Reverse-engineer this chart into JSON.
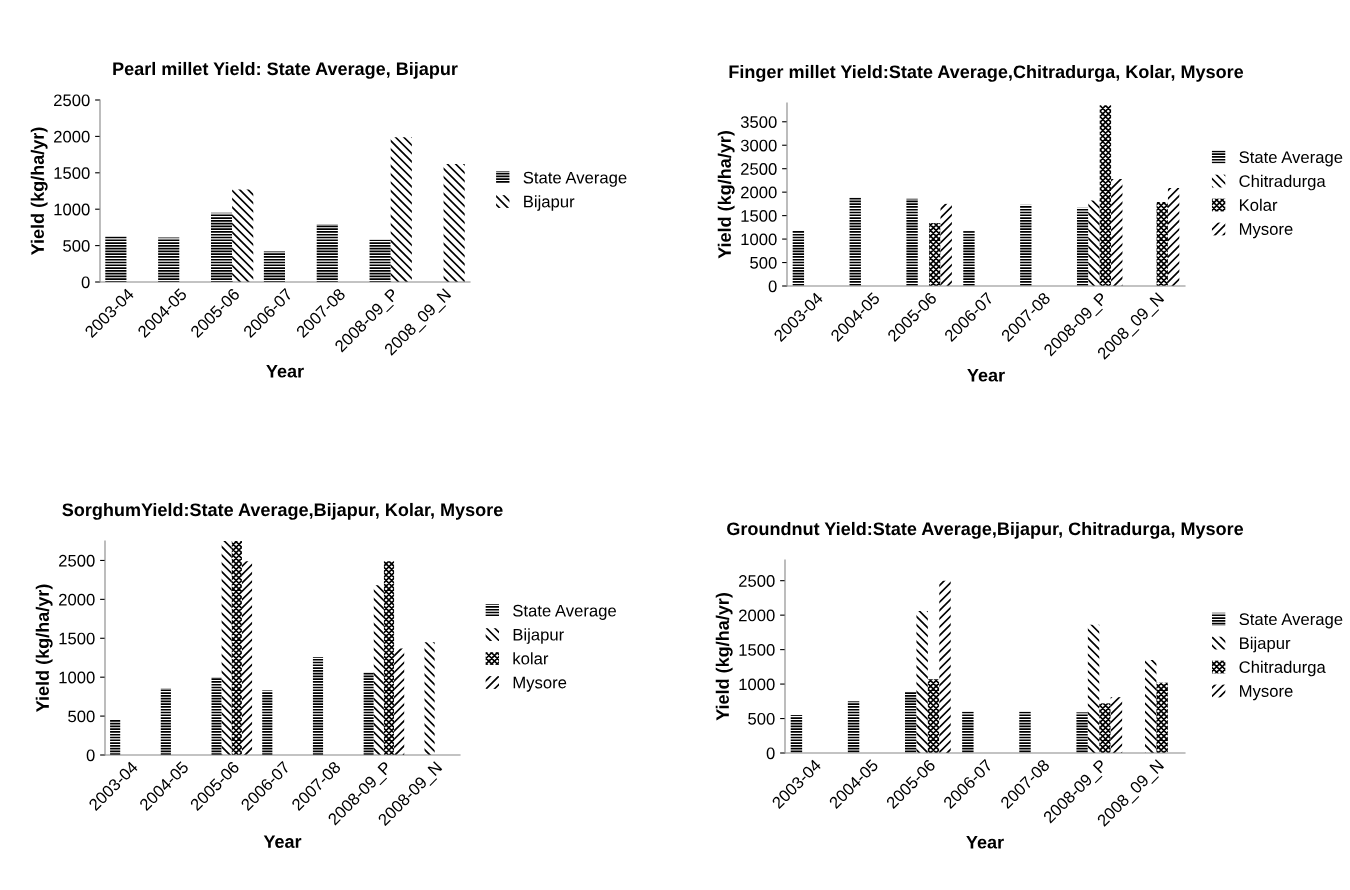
{
  "chart_data": [
    {
      "type": "bar",
      "title": "Pearl millet Yield: State Average, Bijapur",
      "xlabel": "Year",
      "ylabel": "Yield (kg/ha/yr)",
      "categories": [
        "2003-04",
        "2004-05",
        "2005-06",
        "2006-07",
        "2007-08",
        "2008-09_P",
        "2008_09_N"
      ],
      "ylim": [
        0,
        2500
      ],
      "yticks": [
        0,
        500,
        1000,
        1500,
        2000,
        2500
      ],
      "grid": false,
      "legend": "right",
      "series": [
        {
          "name": "State Average",
          "color": "#000000",
          "values": [
            630,
            610,
            950,
            420,
            790,
            580,
            null
          ]
        },
        {
          "name": "Bijapur",
          "color": "#000000",
          "values": [
            null,
            null,
            1270,
            null,
            null,
            1990,
            1620
          ]
        }
      ]
    },
    {
      "type": "bar",
      "title": "Finger millet Yield:State Average,Chitradurga, Kolar, Mysore",
      "xlabel": "Year",
      "ylabel": "Yield (kg/ha/yr)",
      "categories": [
        "2003-04",
        "2004-05",
        "2005-06",
        "2006-07",
        "2007-08",
        "2008-09_P",
        "2008_09_N"
      ],
      "ylim": [
        0,
        3900
      ],
      "yticks": [
        0,
        500,
        1000,
        1500,
        2000,
        2500,
        3000,
        3500
      ],
      "grid": false,
      "legend": "right",
      "series": [
        {
          "name": "State Average",
          "color": "#000000",
          "values": [
            1190,
            1880,
            1860,
            1170,
            1730,
            1670,
            null
          ]
        },
        {
          "name": "Chitradurga",
          "color": "#000000",
          "values": [
            null,
            null,
            null,
            null,
            null,
            1820,
            null
          ]
        },
        {
          "name": "Kolar",
          "color": "#000000",
          "values": [
            null,
            null,
            1340,
            null,
            null,
            3850,
            1790
          ]
        },
        {
          "name": "Mysore",
          "color": "#000000",
          "values": [
            null,
            null,
            1750,
            null,
            null,
            2280,
            2090
          ]
        }
      ]
    },
    {
      "type": "bar",
      "title": "SorghumYield:State Average,Bijapur, Kolar, Mysore",
      "xlabel": "Year",
      "ylabel": "Yield (kg/ha/yr)",
      "categories": [
        "2003-04",
        "2004-05",
        "2005-06",
        "2006-07",
        "2007-08",
        "2008-09_P",
        "2008-09_N"
      ],
      "ylim": [
        0,
        2750
      ],
      "yticks": [
        0,
        500,
        1000,
        1500,
        2000,
        2500
      ],
      "grid": false,
      "legend": "right",
      "series": [
        {
          "name": "State Average",
          "color": "#000000",
          "values": [
            460,
            860,
            1000,
            830,
            1260,
            1060,
            null
          ]
        },
        {
          "name": "Bijapur",
          "color": "#000000",
          "values": [
            null,
            null,
            2750,
            null,
            null,
            2180,
            1450
          ]
        },
        {
          "name": "kolar",
          "color": "#000000",
          "values": [
            null,
            null,
            2750,
            null,
            null,
            2490,
            null
          ]
        },
        {
          "name": "Mysore",
          "color": "#000000",
          "values": [
            null,
            null,
            2490,
            null,
            null,
            1370,
            null
          ]
        }
      ]
    },
    {
      "type": "bar",
      "title": "Groundnut Yield:State Average,Bijapur, Chitradurga, Mysore",
      "xlabel": "Year",
      "ylabel": "Yield (kg/ha/yr)",
      "categories": [
        "2003-04",
        "2004-05",
        "2005-06",
        "2006-07",
        "2007-08",
        "2008-09_P",
        "2008_09_N"
      ],
      "ylim": [
        0,
        2800
      ],
      "yticks": [
        0,
        500,
        1000,
        1500,
        2000,
        2500
      ],
      "grid": false,
      "legend": "right",
      "series": [
        {
          "name": "State Average",
          "color": "#000000",
          "values": [
            550,
            750,
            890,
            600,
            600,
            590,
            null
          ]
        },
        {
          "name": "Bijapur",
          "color": "#000000",
          "values": [
            null,
            null,
            2060,
            null,
            null,
            1860,
            1350
          ]
        },
        {
          "name": "Chitradurga",
          "color": "#000000",
          "values": [
            null,
            null,
            1070,
            null,
            null,
            720,
            1020
          ]
        },
        {
          "name": "Mysore",
          "color": "#000000",
          "values": [
            null,
            null,
            2500,
            null,
            null,
            810,
            null
          ]
        }
      ]
    }
  ]
}
